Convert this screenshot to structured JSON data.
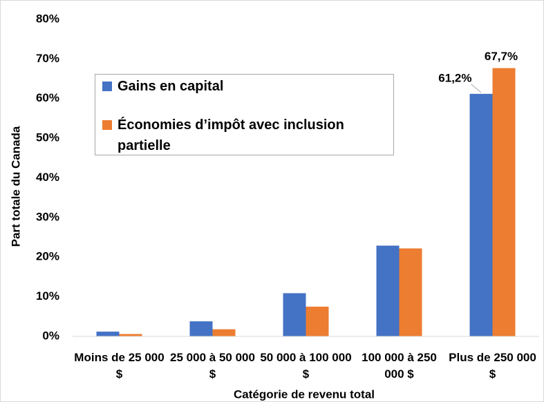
{
  "chart_data": {
    "type": "bar",
    "x_label": "Catégorie de revenu total",
    "y_label": "Part totale du Canada",
    "categories": [
      "Moins de 25 000 $",
      "25 000 à 50 000 $",
      "50 000 à 100 000 $",
      "100 000 à 250 000 $",
      "Plus de 250 000 $"
    ],
    "series": [
      {
        "name": "Gains en capital",
        "color": "#4472c4",
        "values": [
          1.2,
          3.8,
          10.9,
          22.9,
          61.2
        ],
        "value_labels": [
          null,
          null,
          null,
          null,
          "61,2%"
        ]
      },
      {
        "name": "Économies d’impôt avec inclusion partielle",
        "color": "#ed7d31",
        "values": [
          0.6,
          1.8,
          7.5,
          22.2,
          67.7
        ],
        "value_labels": [
          null,
          null,
          null,
          null,
          "67,7%"
        ]
      }
    ],
    "ylim": [
      0,
      80
    ],
    "yticks": [
      {
        "value": 0,
        "label": "0%"
      },
      {
        "value": 10,
        "label": "10%"
      },
      {
        "value": 20,
        "label": "20%"
      },
      {
        "value": 30,
        "label": "30%"
      },
      {
        "value": 40,
        "label": "40%"
      },
      {
        "value": 50,
        "label": "50%"
      },
      {
        "value": 60,
        "label": "60%"
      },
      {
        "value": 70,
        "label": "70%"
      },
      {
        "value": 80,
        "label": "80%"
      }
    ],
    "grid": false,
    "legend_position": "upper left"
  }
}
